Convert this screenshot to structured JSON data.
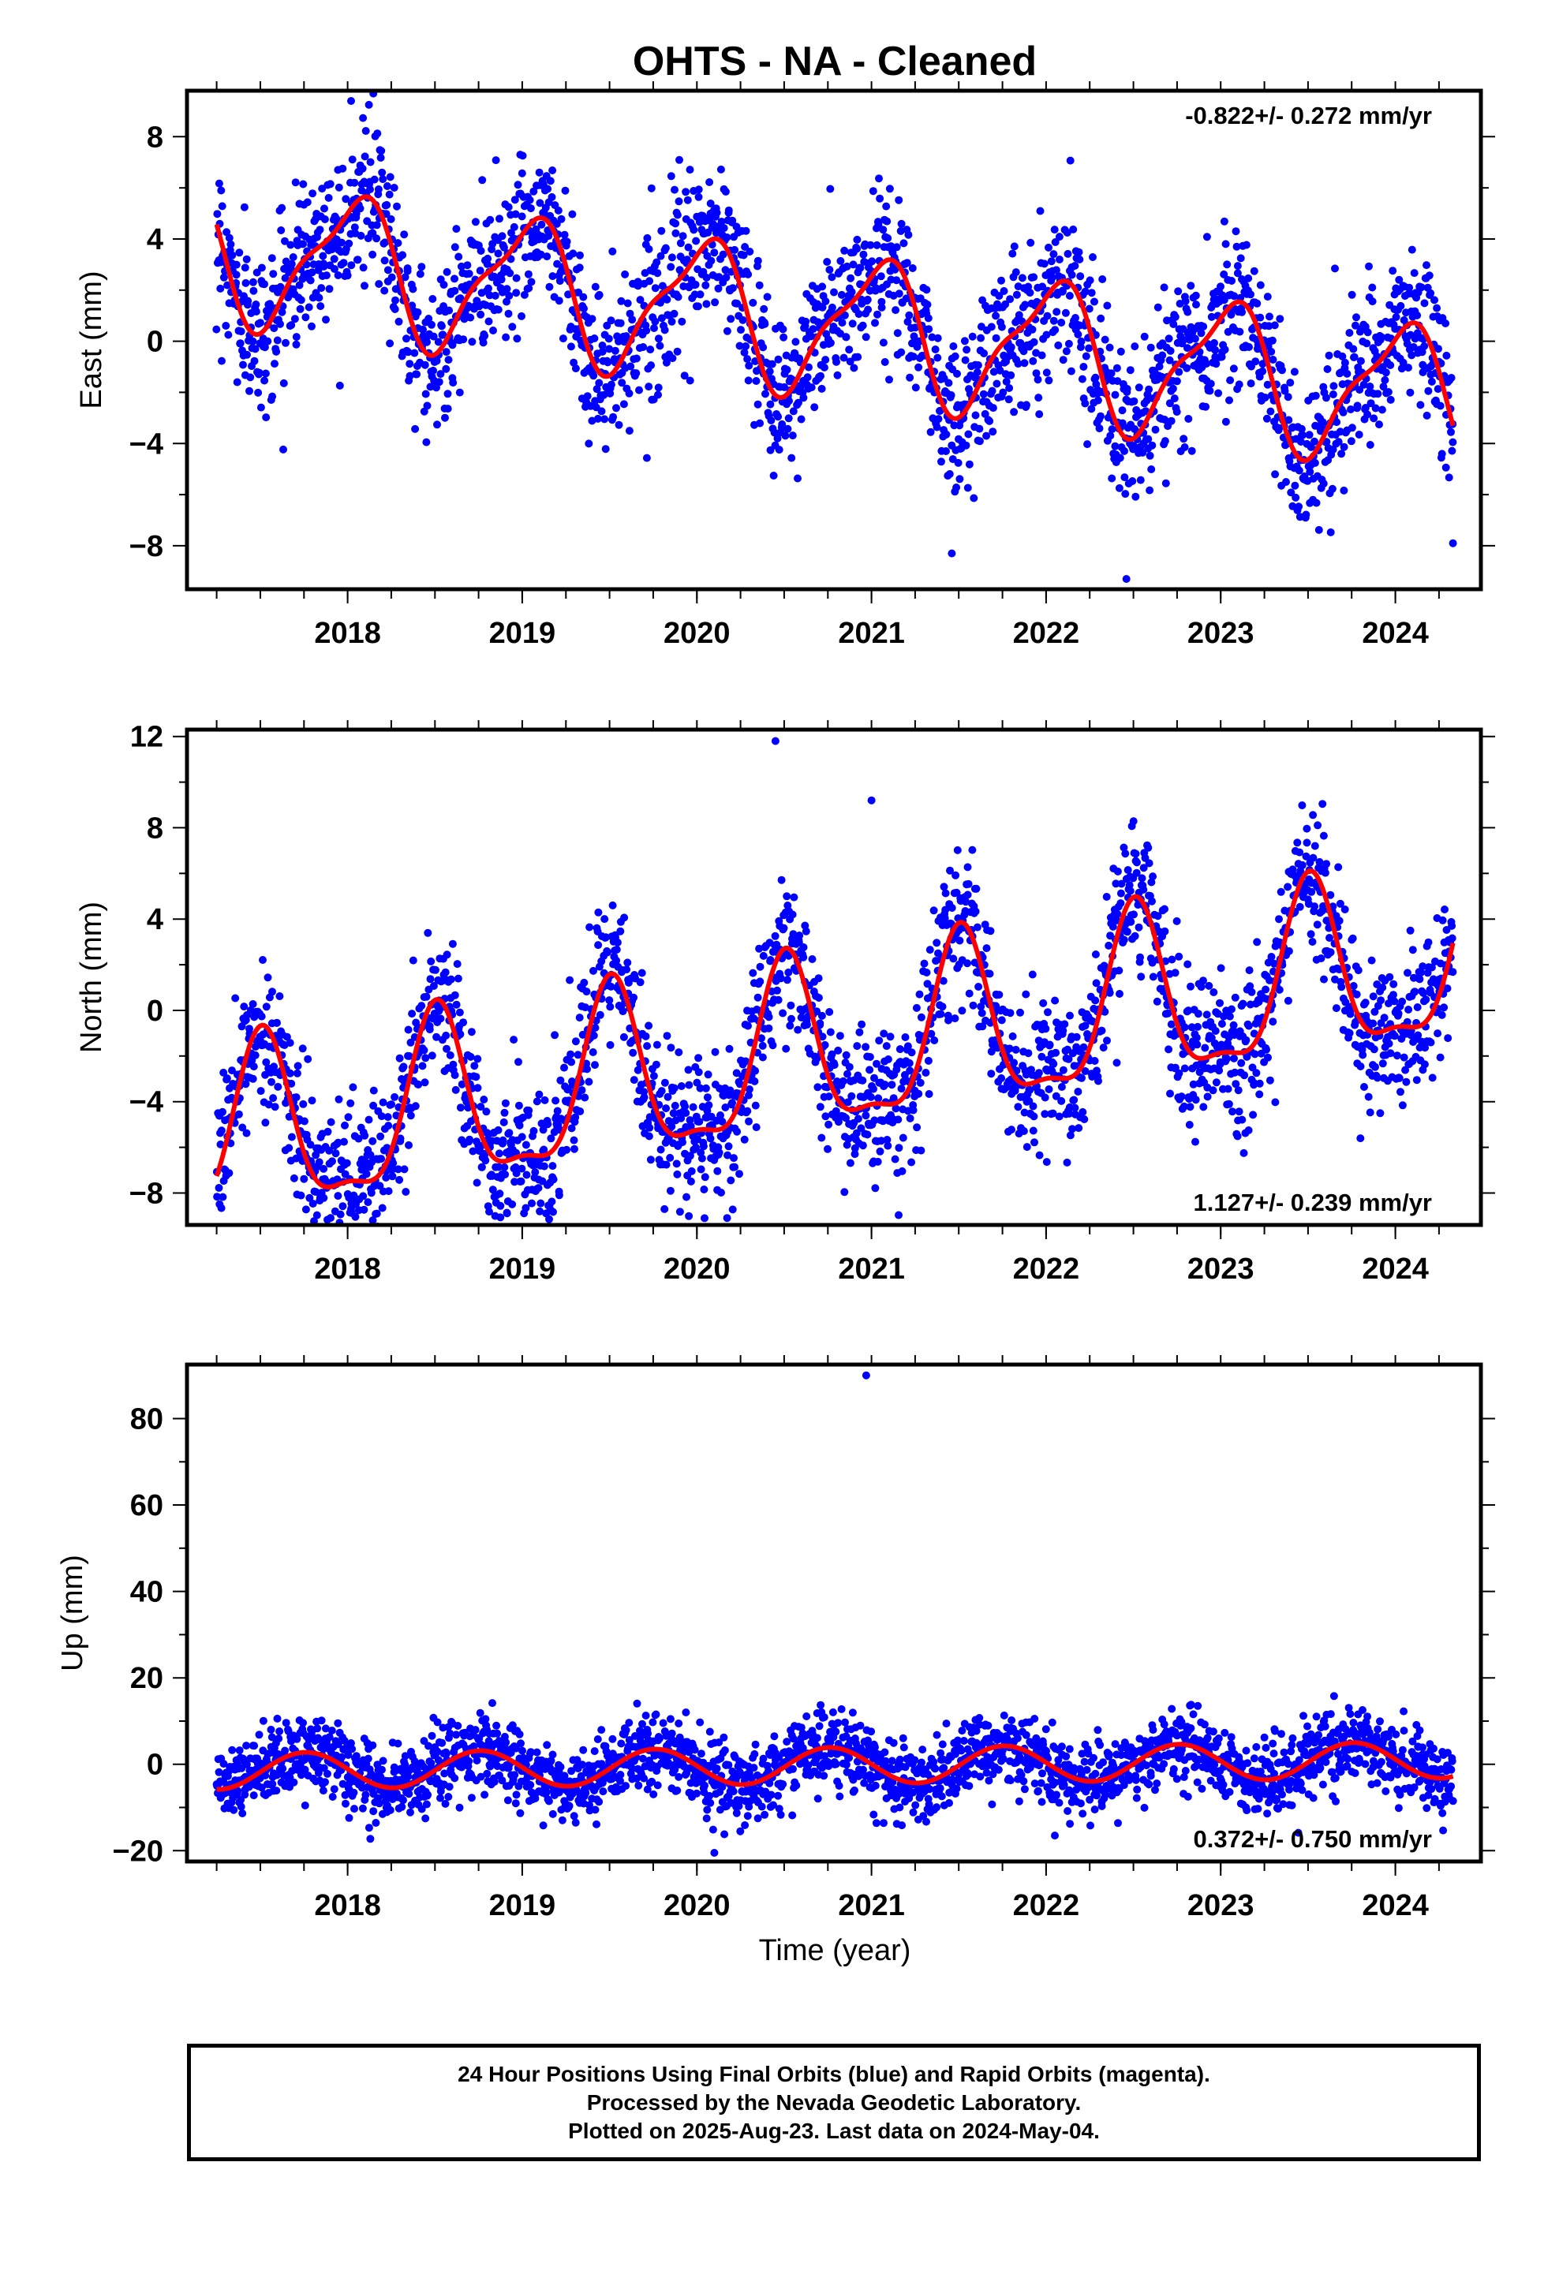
{
  "figure": {
    "title": "OHTS  - NA - Cleaned",
    "x_axis_label": "Time (year)"
  },
  "colors": {
    "data": "#0000ff",
    "model": "#ff0000",
    "frame": "#000000"
  },
  "footer": {
    "lines": [
      "24 Hour Positions Using Final Orbits (blue) and Rapid Orbits (magenta).",
      "Processed by the Nevada Geodetic Laboratory.",
      "Plotted on 2025-Aug-23. Last data on 2024-May-04."
    ]
  },
  "chart_data": [
    {
      "type": "scatter",
      "name_label": "East (mm)",
      "ylabel": "East (mm)",
      "xlabel": "",
      "xlim": [
        2017.08,
        2024.49
      ],
      "ylim": [
        -9.7,
        9.8
      ],
      "x_ticks": [
        "2018",
        "2019",
        "2020",
        "2021",
        "2022",
        "2023",
        "2024"
      ],
      "y_ticks": [
        "8",
        "4",
        "0",
        "−4",
        "−8"
      ],
      "y_tick_values": [
        8,
        4,
        0,
        -4,
        -8
      ],
      "rate_text": "-0.822+/- 0.272 mm/yr",
      "rate_position": "top-right",
      "grid": false,
      "series": [
        {
          "name": "",
          "style": "points",
          "x_range": [
            2017.25,
            2024.33
          ],
          "count": 2400,
          "offset": 1.31,
          "trend": -0.822,
          "annual_amp": 2.6,
          "annual_peak": 2018.03,
          "semiannual_amp": 0.8,
          "semiannual_peak": 2018.18,
          "noise": 1.5,
          "note_outliers": [
            [
              2018.02,
              9.4
            ],
            [
              2022.46,
              -9.3
            ],
            [
              2021.46,
              -8.3
            ],
            [
              2024.33,
              -7.9
            ]
          ]
        },
        {
          "name": "",
          "style": "line",
          "x_range": [
            2017.25,
            2024.33
          ],
          "offset": 1.31,
          "trend": -0.822,
          "annual_amp": 2.6,
          "annual_peak": 2018.03,
          "semiannual_amp": 0.8,
          "semiannual_peak": 2018.18
        }
      ]
    },
    {
      "type": "scatter",
      "name_label": "North (mm)",
      "ylabel": "North (mm)",
      "xlabel": "",
      "xlim": [
        2017.08,
        2024.49
      ],
      "ylim": [
        -9.4,
        12.3
      ],
      "x_ticks": [
        "2018",
        "2019",
        "2020",
        "2021",
        "2022",
        "2023",
        "2024"
      ],
      "y_ticks": [
        "12",
        "8",
        "4",
        "0",
        "−4",
        "−8"
      ],
      "y_tick_values": [
        12,
        8,
        4,
        0,
        -4,
        -8
      ],
      "rate_text": "1.127+/- 0.239 mm/yr",
      "rate_position": "bottom-right",
      "grid": false,
      "series": [
        {
          "name": "",
          "style": "points",
          "x_range": [
            2017.25,
            2024.33
          ],
          "count": 2400,
          "offset": -2.74,
          "trend": 1.127,
          "annual_amp": 3.7,
          "annual_peak": 2017.51,
          "semiannual_amp": 1.2,
          "semiannual_peak": 2017.51,
          "noise": 1.6,
          "note_outliers": [
            [
              2020.45,
              11.8
            ],
            [
              2018.02,
              -8.7
            ],
            [
              2021.0,
              9.2
            ]
          ]
        },
        {
          "name": "",
          "style": "line",
          "x_range": [
            2017.25,
            2024.33
          ],
          "offset": -2.74,
          "trend": 1.127,
          "annual_amp": 3.7,
          "annual_peak": 2017.51,
          "semiannual_amp": 1.2,
          "semiannual_peak": 2017.51
        }
      ]
    },
    {
      "type": "scatter",
      "name_label": "Up (mm)",
      "ylabel": "Up (mm)",
      "xlabel": "Time (year)",
      "xlim": [
        2017.08,
        2024.49
      ],
      "ylim": [
        -22.5,
        92.5
      ],
      "x_ticks": [
        "2018",
        "2019",
        "2020",
        "2021",
        "2022",
        "2023",
        "2024"
      ],
      "y_ticks": [
        "80",
        "60",
        "40",
        "20",
        "0",
        "−20"
      ],
      "y_tick_values": [
        80,
        60,
        40,
        20,
        0,
        -20
      ],
      "rate_text": "0.372+/- 0.750 mm/yr",
      "rate_position": "bottom-right",
      "grid": false,
      "series": [
        {
          "name": "",
          "style": "points",
          "x_range": [
            2017.25,
            2024.33
          ],
          "count": 2400,
          "offset": -0.6,
          "trend": 0.372,
          "annual_amp": 4.2,
          "annual_peak": 2017.76,
          "semiannual_amp": 0.0,
          "semiannual_peak": 2017.76,
          "noise": 4.2,
          "note_outliers": [
            [
              2020.97,
              90.0
            ],
            [
              2020.1,
              -20.5
            ],
            [
              2022.05,
              -16.5
            ]
          ]
        },
        {
          "name": "",
          "style": "line",
          "x_range": [
            2017.25,
            2024.33
          ],
          "offset": -0.6,
          "trend": 0.372,
          "annual_amp": 4.2,
          "annual_peak": 2017.76,
          "semiannual_amp": 0.0,
          "semiannual_peak": 2017.76
        }
      ]
    }
  ]
}
